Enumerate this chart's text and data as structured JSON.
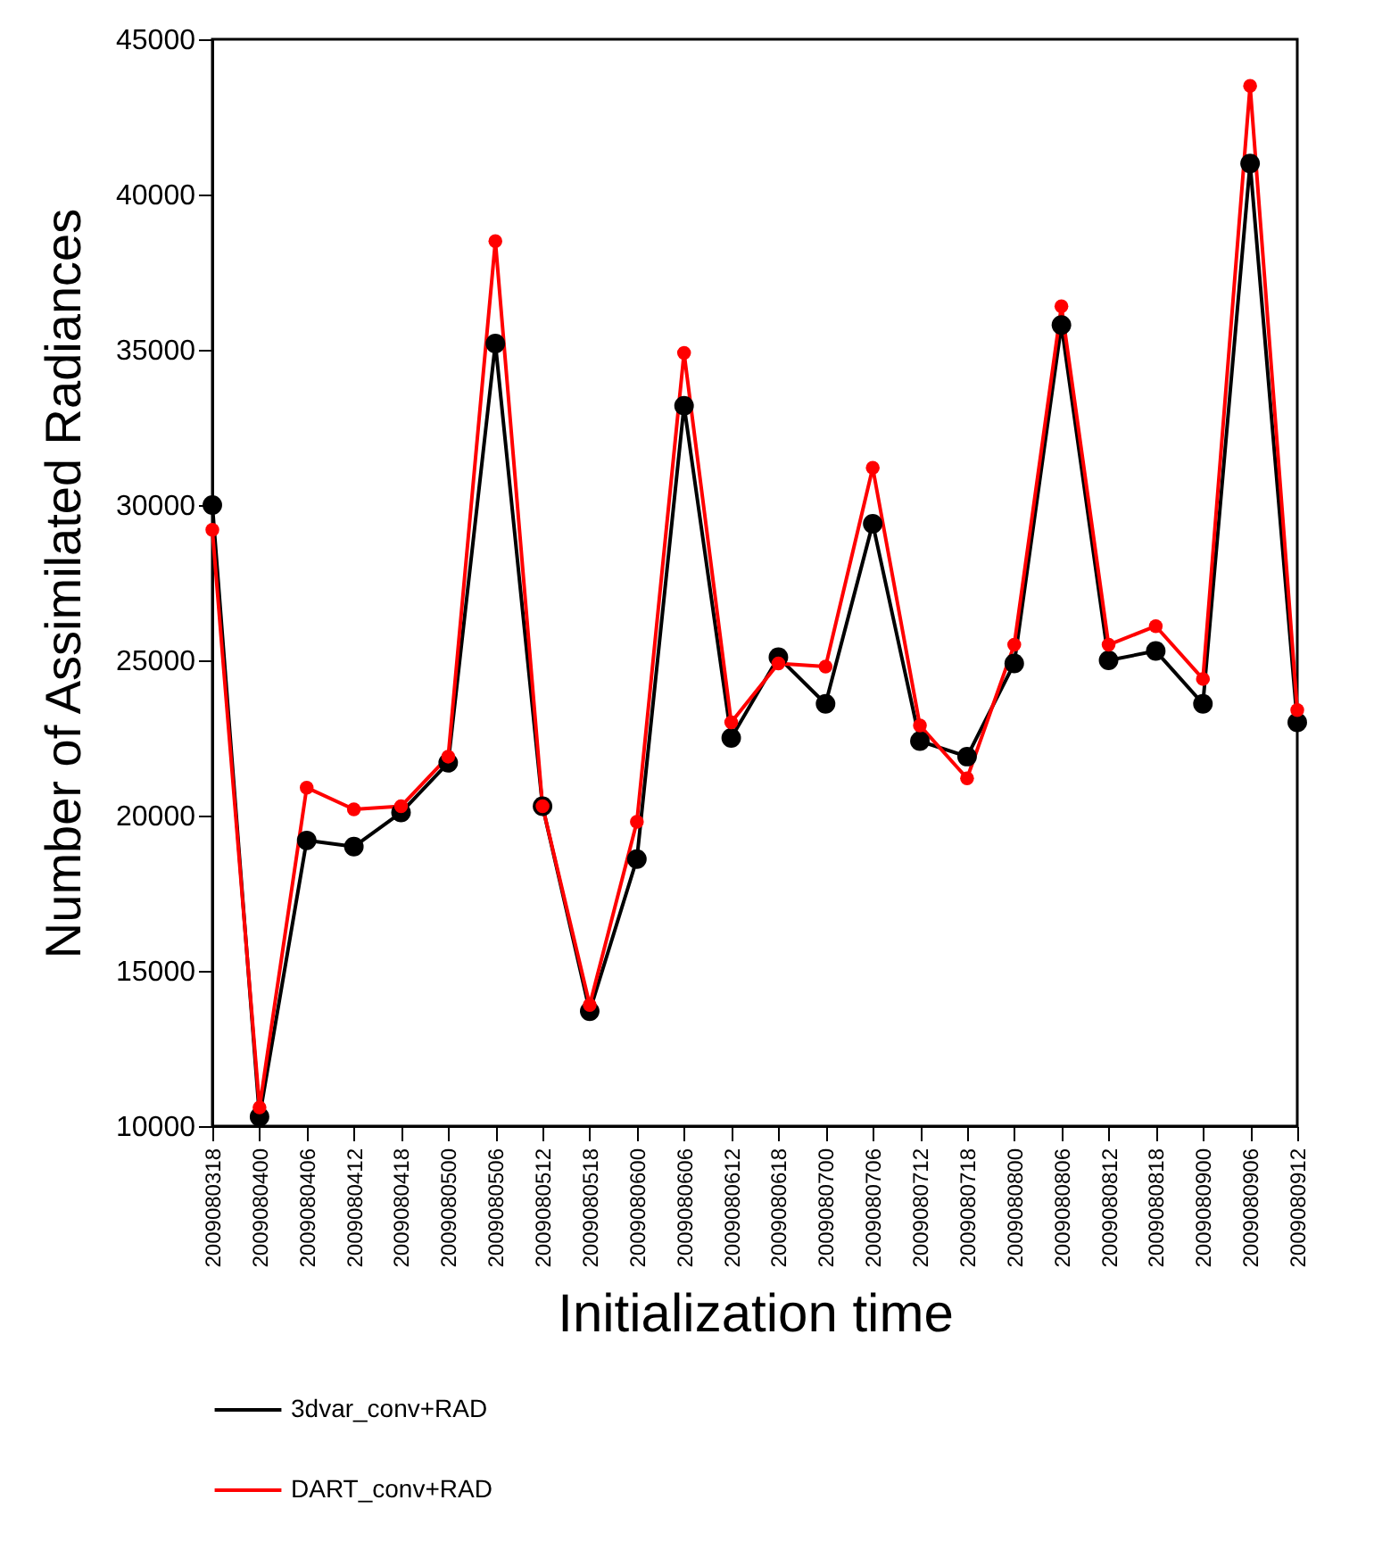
{
  "chart_data": {
    "type": "line",
    "xlabel": "Initialization time",
    "ylabel": "Number of Assimilated Radiances",
    "categories": [
      "2009080318",
      "2009080400",
      "2009080406",
      "2009080412",
      "2009080418",
      "2009080500",
      "2009080506",
      "2009080512",
      "2009080518",
      "2009080600",
      "2009080606",
      "2009080612",
      "2009080618",
      "2009080700",
      "2009080706",
      "2009080712",
      "2009080718",
      "2009080800",
      "2009080806",
      "2009080812",
      "2009080818",
      "2009080900",
      "2009080906",
      "2009080912"
    ],
    "series": [
      {
        "name": "3dvar_conv+RAD",
        "color": "#000000",
        "values": [
          30000,
          10300,
          19200,
          19000,
          20100,
          21700,
          35200,
          20300,
          13700,
          18600,
          33200,
          22500,
          25100,
          23600,
          29400,
          22400,
          21900,
          24900,
          35800,
          25000,
          25300,
          23600,
          41000,
          23000
        ]
      },
      {
        "name": "DART_conv+RAD",
        "color": "#ff0000",
        "values": [
          29200,
          10600,
          20900,
          20200,
          20300,
          21900,
          38500,
          20300,
          13900,
          19800,
          34900,
          23000,
          24900,
          24800,
          31200,
          22900,
          21200,
          25500,
          36400,
          25500,
          26100,
          24400,
          43500,
          23400
        ]
      }
    ],
    "ylim": [
      10000,
      45000
    ],
    "yticks": [
      10000,
      15000,
      20000,
      25000,
      30000,
      35000,
      40000,
      45000
    ],
    "grid": false,
    "legend": "bottom",
    "marker": "circle",
    "line_style": "solid"
  }
}
